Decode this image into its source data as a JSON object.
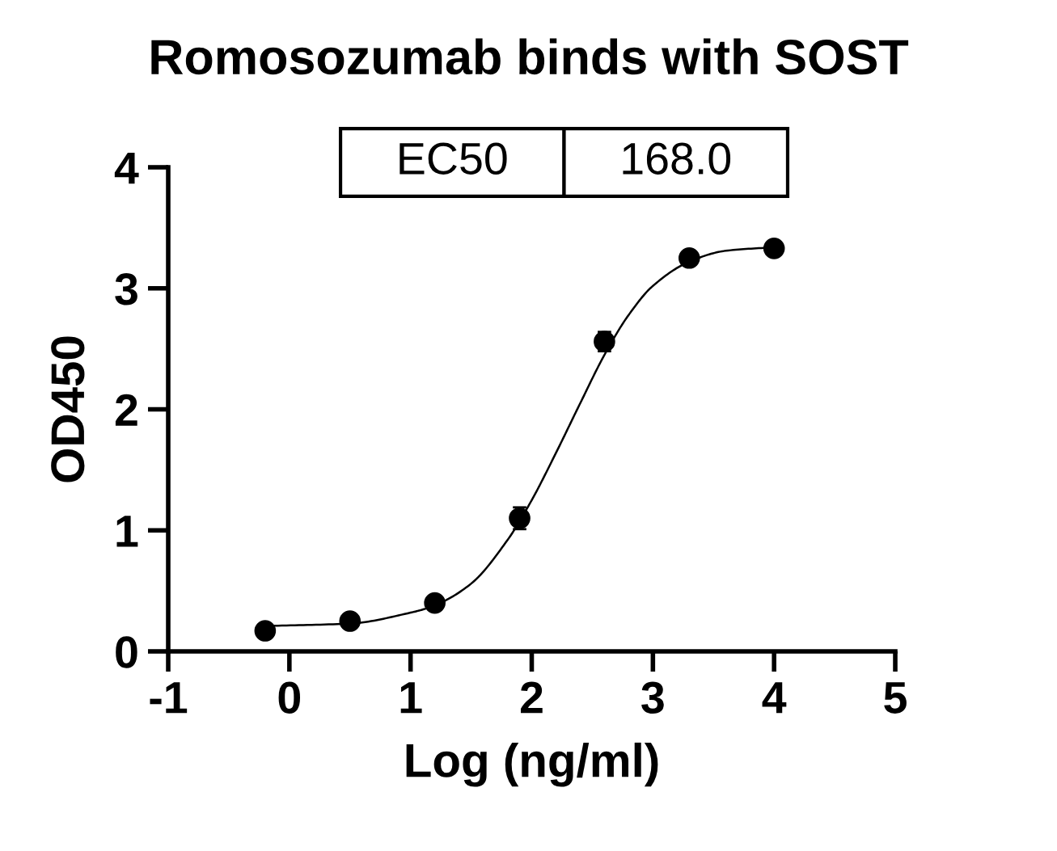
{
  "chart_data": {
    "type": "scatter",
    "title": "Romosozumab binds with SOST",
    "xlabel": "Log (ng/ml)",
    "ylabel": "OD450",
    "series": [
      {
        "color": "#000000",
        "marker": "circle",
        "x": [
          -0.2,
          0.5,
          1.2,
          1.9,
          2.6,
          3.3,
          4.0
        ],
        "values": [
          0.17,
          0.25,
          0.4,
          1.1,
          2.56,
          3.25,
          3.33
        ],
        "errors": [
          null,
          null,
          0.03,
          0.09,
          0.08,
          null,
          null
        ]
      },
      {
        "type": "line",
        "color": "#000000",
        "marker": "none",
        "line_style": "solid",
        "x": [
          -0.2,
          0.5,
          1.0,
          1.2,
          1.5,
          1.8,
          2.0,
          2.2,
          2.4,
          2.6,
          2.8,
          3.0,
          3.3,
          3.6,
          4.0
        ],
        "values": [
          0.21,
          0.23,
          0.32,
          0.38,
          0.56,
          0.92,
          1.25,
          1.64,
          2.05,
          2.45,
          2.78,
          3.02,
          3.22,
          3.31,
          3.34
        ]
      }
    ],
    "annotations": [
      "EC50",
      "168.0"
    ],
    "xlim": [
      -1,
      5
    ],
    "xticks": [
      -1,
      0,
      1,
      2,
      3,
      4,
      5
    ],
    "ylim": [
      0,
      4
    ],
    "yticks": [
      0,
      1,
      2,
      3,
      4
    ],
    "grid": false,
    "legend": false
  }
}
